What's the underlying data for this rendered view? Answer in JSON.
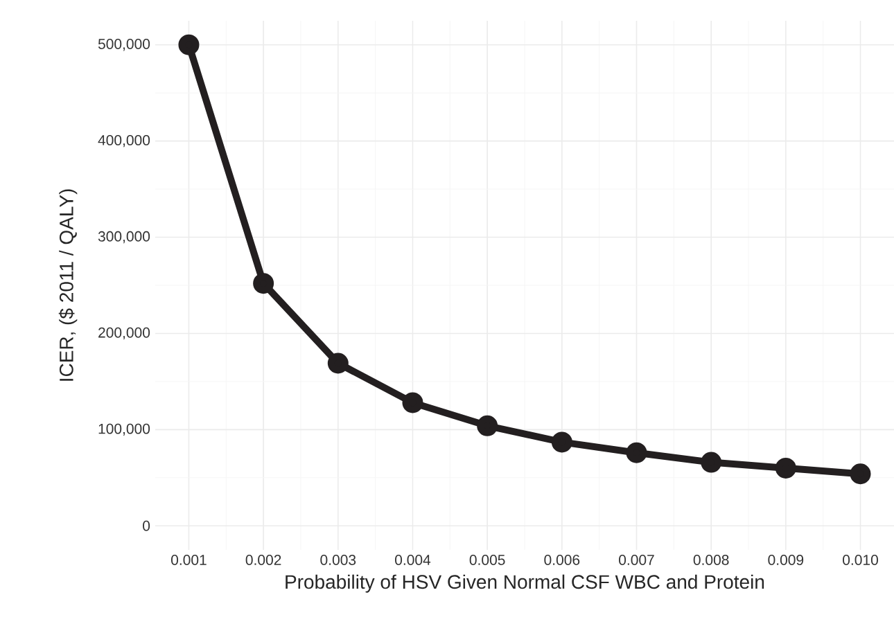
{
  "chart_data": {
    "type": "line",
    "xlabel": "Probability of HSV Given Normal CSF WBC and Protein",
    "ylabel": "ICER, ($ 2011 / QALY)",
    "x": [
      0.001,
      0.002,
      0.003,
      0.004,
      0.005,
      0.006,
      0.007,
      0.008,
      0.009,
      0.01
    ],
    "series": [
      {
        "color": "#231f20",
        "values": [
          500000,
          252000,
          169000,
          128000,
          104000,
          87000,
          76000,
          66000,
          60000,
          54000
        ]
      }
    ],
    "xlim": [
      0.00055,
      0.01045
    ],
    "ylim": [
      -25000,
      525000
    ],
    "xticks": [
      {
        "value": 0.001,
        "label": "0.001"
      },
      {
        "value": 0.002,
        "label": "0.002"
      },
      {
        "value": 0.003,
        "label": "0.003"
      },
      {
        "value": 0.004,
        "label": "0.004"
      },
      {
        "value": 0.005,
        "label": "0.005"
      },
      {
        "value": 0.006,
        "label": "0.006"
      },
      {
        "value": 0.007,
        "label": "0.007"
      },
      {
        "value": 0.008,
        "label": "0.008"
      },
      {
        "value": 0.009,
        "label": "0.009"
      },
      {
        "value": 0.01,
        "label": "0.010"
      }
    ],
    "yticks": [
      {
        "value": 0,
        "label": "0"
      },
      {
        "value": 100000,
        "label": "100,000"
      },
      {
        "value": 200000,
        "label": "200,000"
      },
      {
        "value": 300000,
        "label": "300,000"
      },
      {
        "value": 400000,
        "label": "400,000"
      },
      {
        "value": 500000,
        "label": "500,000"
      }
    ],
    "grid": true,
    "marker": "circle",
    "line_style": "solid"
  }
}
